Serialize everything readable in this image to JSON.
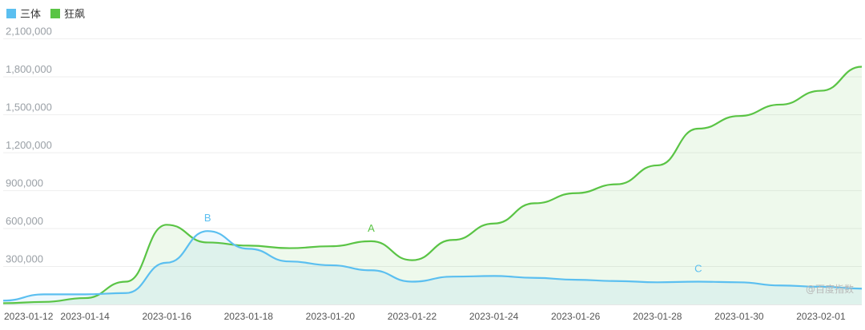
{
  "legend": [
    {
      "label": "三体",
      "color": "#5bbff0"
    },
    {
      "label": "狂飙",
      "color": "#5ac445"
    }
  ],
  "watermark": "@百度指数",
  "chart_data": {
    "type": "area",
    "ylim": [
      0,
      2300000
    ],
    "yticks": [
      300000,
      600000,
      900000,
      1200000,
      1500000,
      1800000,
      2100000
    ],
    "ytick_labels": [
      "300,000",
      "600,000",
      "900,000",
      "1,200,000",
      "1,500,000",
      "1,800,000",
      "2,100,000"
    ],
    "xtick_labels": [
      "2023-01-12",
      "2023-01-14",
      "2023-01-16",
      "2023-01-18",
      "2023-01-20",
      "2023-01-22",
      "2023-01-24",
      "2023-01-26",
      "2023-01-28",
      "2023-01-30",
      "2023-02-01"
    ],
    "x": [
      "2023-01-12",
      "2023-01-13",
      "2023-01-14",
      "2023-01-15",
      "2023-01-16",
      "2023-01-17",
      "2023-01-18",
      "2023-01-19",
      "2023-01-20",
      "2023-01-21",
      "2023-01-22",
      "2023-01-23",
      "2023-01-24",
      "2023-01-25",
      "2023-01-26",
      "2023-01-27",
      "2023-01-28",
      "2023-01-29",
      "2023-01-30",
      "2023-01-31",
      "2023-02-01",
      "2023-02-02"
    ],
    "series": [
      {
        "name": "三体",
        "color": "#5bbff0",
        "values": [
          30000,
          80000,
          80000,
          90000,
          330000,
          580000,
          440000,
          340000,
          310000,
          270000,
          180000,
          220000,
          225000,
          210000,
          195000,
          185000,
          175000,
          180000,
          175000,
          150000,
          140000,
          125000
        ]
      },
      {
        "name": "狂飙",
        "color": "#5ac445",
        "values": [
          10000,
          20000,
          50000,
          180000,
          630000,
          490000,
          465000,
          445000,
          460000,
          500000,
          350000,
          510000,
          640000,
          800000,
          880000,
          950000,
          1100000,
          1390000,
          1490000,
          1580000,
          1690000,
          1880000
        ]
      }
    ],
    "annotations": [
      {
        "text": "B",
        "series": 0,
        "index": 5
      },
      {
        "text": "A",
        "series": 1,
        "index": 9
      },
      {
        "text": "C",
        "series": 0,
        "index": 17
      }
    ]
  }
}
